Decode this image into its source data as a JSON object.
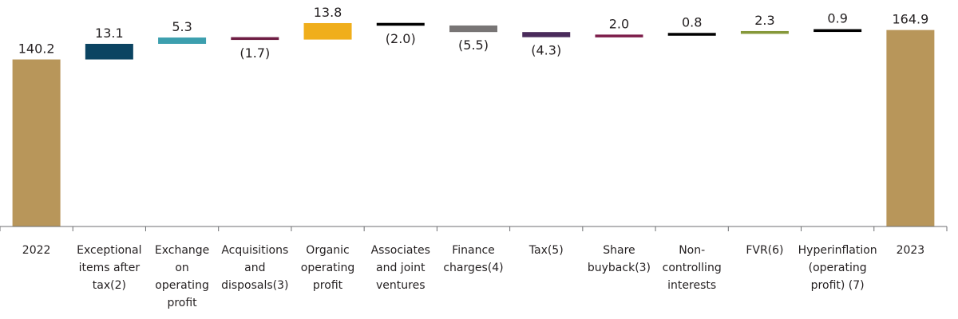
{
  "chart_data": {
    "type": "waterfall",
    "title": "",
    "xlabel": "",
    "ylabel": "",
    "ylim": [
      0,
      175
    ],
    "grid": false,
    "categories": [
      [
        "2022"
      ],
      [
        "Exceptional",
        "items after",
        "tax(2)"
      ],
      [
        "Exchange",
        "on",
        "operating",
        "profit"
      ],
      [
        "Acquisitions",
        "and",
        "disposals(3)"
      ],
      [
        "Organic",
        "operating",
        "profit"
      ],
      [
        "Associates",
        "and joint",
        "ventures"
      ],
      [
        "Finance",
        "charges(4)"
      ],
      [
        "Tax(5)"
      ],
      [
        "Share",
        "buyback(3)"
      ],
      [
        "Non-",
        "controlling",
        "interests"
      ],
      [
        "FVR(6)"
      ],
      [
        "Hyperinflation",
        "(operating",
        "profit) (7)"
      ],
      [
        "2023"
      ]
    ],
    "values": [
      140.2,
      13.1,
      5.3,
      -1.7,
      13.8,
      -2.0,
      -5.5,
      -4.3,
      2.0,
      0.8,
      2.3,
      0.9,
      164.9
    ],
    "value_labels": [
      "140.2",
      "13.1",
      "5.3",
      "(1.7)",
      "13.8",
      "(2.0)",
      "(5.5)",
      "(4.3)",
      "2.0",
      "0.8",
      "2.3",
      "0.9",
      "164.9"
    ],
    "is_total": [
      true,
      false,
      false,
      false,
      false,
      false,
      false,
      false,
      false,
      false,
      false,
      false,
      true
    ],
    "colors": [
      "#b8965a",
      "#0b4462",
      "#3c9fae",
      "#6e1d43",
      "#f0ae1b",
      "#000000",
      "#787575",
      "#4a2b5b",
      "#7d1e4b",
      "#000000",
      "#86983a",
      "#000000",
      "#b8965a"
    ]
  }
}
